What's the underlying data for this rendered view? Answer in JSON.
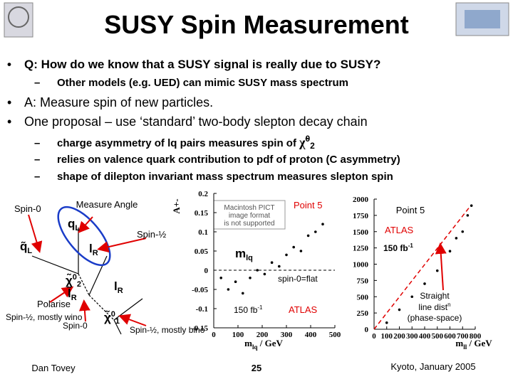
{
  "header": {
    "title": "SUSY Spin Measurement"
  },
  "bullets": [
    {
      "text": "Q: How do we know that a SUSY signal is really due to SUSY?",
      "sub": [
        "Other models (e.g. UED) can mimic SUSY mass spectrum"
      ]
    },
    {
      "text": "A: Measure spin of new particles."
    },
    {
      "text": "One proposal – use ‘standard’ two-body slepton decay chain",
      "sub": [
        {
          "text": "charge asymmetry of lq pairs measures spin of ",
          "symbol": "χ̃",
          "sup": "0",
          "subscript": "2"
        },
        "relies on valence quark contribution to pdf of proton (C asymmetry)",
        "shape of dilepton invariant mass spectrum measures slepton spin"
      ]
    }
  ],
  "diagram": {
    "spin0_top": "Spin-0",
    "measure": "Measure Angle",
    "spin_half": "Spin-½",
    "polarise": "Polarise",
    "wino": "Spin-½, mostly wino",
    "spin0_bottom": "Spin-0",
    "bino": "Spin-½, mostly bino",
    "particles": {
      "squark": "q̃",
      "squark_sub": "L",
      "quark": "q",
      "quark_sub": "L",
      "lepton_near": "l",
      "lepton_near_sub": "R",
      "neutralino2": "χ̃",
      "neutralino2_sup": "0",
      "neutralino2_sub": "2",
      "slepton": "l̃",
      "slepton_sub": "R",
      "lepton_far": "l",
      "lepton_far_sub": "R",
      "neutralino1": "χ̃",
      "neutralino1_sup": "0",
      "neutralino1_sub": "1"
    }
  },
  "plots": [
    {
      "type": "scatter",
      "ylabel": "A+-",
      "xlabel": "m",
      "xlabel_sub": "lq",
      "xlabel_unit": " / GeV",
      "pict_note": [
        "Macintosh PICT",
        "image format",
        "is not supported"
      ],
      "annotations": {
        "point": "Point 5",
        "mass": "m",
        "mass_sub": "lq",
        "flat": "spin-0=flat",
        "lumi": "150 fb",
        "lumi_sup": "-1",
        "experiment": "ATLAS"
      },
      "xlim": [
        0,
        500
      ],
      "ylim": [
        -0.15,
        0.2
      ],
      "xticks": [
        0,
        100,
        200,
        300,
        400,
        500
      ],
      "yticks": [
        0.2,
        0.15,
        0.1,
        0.05,
        0,
        -0.05,
        -0.1,
        -0.15
      ],
      "x": [
        30,
        60,
        90,
        120,
        150,
        180,
        210,
        240,
        270,
        300,
        330,
        360,
        390,
        420,
        450
      ],
      "series": [
        {
          "color": "#000000",
          "values": [
            -0.02,
            -0.05,
            -0.03,
            -0.06,
            -0.02,
            0.0,
            -0.01,
            0.02,
            0.01,
            0.04,
            0.06,
            0.05,
            0.09,
            0.1,
            0.12
          ]
        }
      ]
    },
    {
      "type": "scatter",
      "xlabel": "m",
      "xlabel_sub": "ll",
      "xlabel_unit": " / GeV",
      "annotations": {
        "point": "Point 5",
        "experiment": "ATLAS",
        "lumi": "150 fb",
        "lumi_sup": "-1",
        "straight": [
          "Straight",
          "line dist",
          "(phase-space)"
        ],
        "straight_sup": "n"
      },
      "xlim": [
        0,
        800
      ],
      "ylim": [
        0,
        2000
      ],
      "xticks": [
        0,
        100,
        200,
        300,
        400,
        500,
        600,
        700,
        800
      ],
      "yticks": [
        0,
        250,
        500,
        750,
        1000,
        1250,
        1500,
        1750,
        2000
      ],
      "x": [
        100,
        200,
        300,
        400,
        500,
        600,
        650,
        700,
        740,
        770
      ],
      "series": [
        {
          "color": "#000000",
          "values": [
            100,
            300,
            500,
            700,
            900,
            1200,
            1400,
            1500,
            1750,
            1900
          ]
        }
      ]
    }
  ],
  "footer": {
    "author": "Dan Tovey",
    "page": "25",
    "venue": "Kyoto, January 2005"
  }
}
